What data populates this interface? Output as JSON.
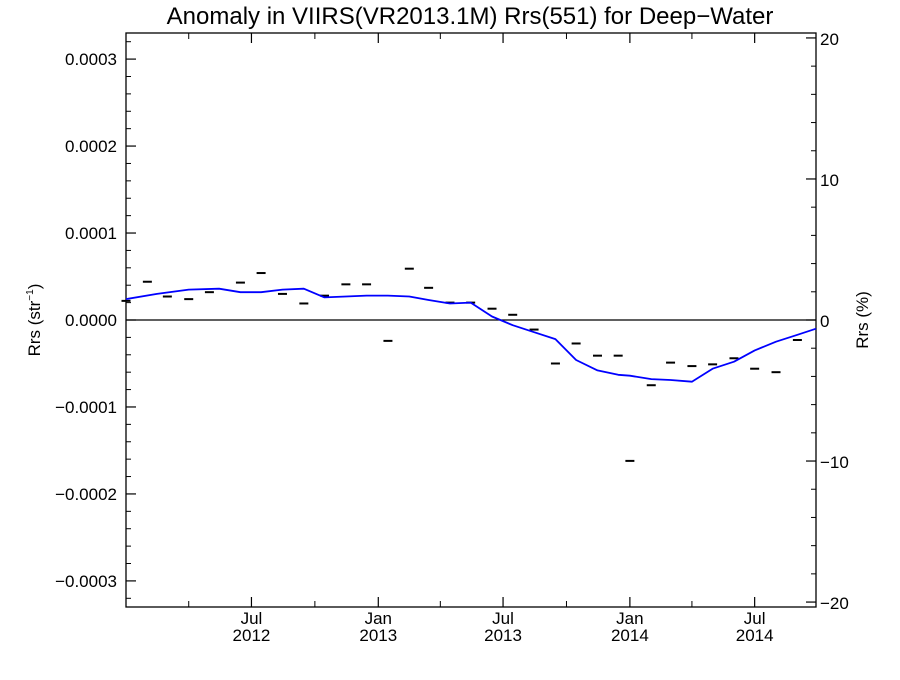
{
  "chart_data": {
    "type": "line",
    "title": "Anomaly in VIIRS(VR2013.1M) Rrs(551) for Deep−Water",
    "ylabel_left": {
      "base": "Rrs (str",
      "sup": "−1",
      "close": ")"
    },
    "ylabel_right": "Rrs (%)",
    "xlim": [
      "2012-01-01",
      "2014-09-28"
    ],
    "ylim_left": [
      -0.00033,
      0.00033
    ],
    "ylim_right": [
      -20.35,
      20.35
    ],
    "zero_line": true,
    "grid": false,
    "legend": "none",
    "left_ticks": [
      {
        "value": 0.0003,
        "label": "0.0003"
      },
      {
        "value": 0.0002,
        "label": "0.0002"
      },
      {
        "value": 0.0001,
        "label": "0.0001"
      },
      {
        "value": 0.0,
        "label": "0.0000"
      },
      {
        "value": -0.0001,
        "label": "−0.0001"
      },
      {
        "value": -0.0002,
        "label": "−0.0002"
      },
      {
        "value": -0.0003,
        "label": "−0.0003"
      }
    ],
    "right_ticks": [
      {
        "value": 20,
        "label": "20"
      },
      {
        "value": 10,
        "label": "10"
      },
      {
        "value": 0,
        "label": "0"
      },
      {
        "value": -10,
        "label": "−10"
      },
      {
        "value": -20,
        "label": "−20"
      }
    ],
    "x_ticks": [
      {
        "date": "2012-07-01",
        "label1": "Jul",
        "label2": "2012"
      },
      {
        "date": "2013-01-01",
        "label1": "Jan",
        "label2": "2013"
      },
      {
        "date": "2013-07-01",
        "label1": "Jul",
        "label2": "2013"
      },
      {
        "date": "2014-01-01",
        "label1": "Jan",
        "label2": "2014"
      },
      {
        "date": "2014-07-01",
        "label1": "Jul",
        "label2": "2014"
      }
    ],
    "x_minor_ticks": [
      "2012-01-01",
      "2012-04-01",
      "2012-10-01",
      "2013-04-01",
      "2013-10-01",
      "2014-04-01"
    ],
    "series": [
      {
        "style": "dash-markers",
        "color": "#000000",
        "points": [
          {
            "x": "2012-01-01",
            "y": 2.2e-05
          },
          {
            "x": "2012-02-01",
            "y": 4.4e-05
          },
          {
            "x": "2012-03-01",
            "y": 2.7e-05
          },
          {
            "x": "2012-04-01",
            "y": 2.4e-05
          },
          {
            "x": "2012-05-01",
            "y": 3.2e-05
          },
          {
            "x": "2012-06-15",
            "y": 4.3e-05
          },
          {
            "x": "2012-07-15",
            "y": 5.4e-05
          },
          {
            "x": "2012-08-15",
            "y": 3e-05
          },
          {
            "x": "2012-09-15",
            "y": 1.9e-05
          },
          {
            "x": "2012-10-15",
            "y": 2.8e-05
          },
          {
            "x": "2012-11-15",
            "y": 4.1e-05
          },
          {
            "x": "2012-12-15",
            "y": 4.1e-05
          },
          {
            "x": "2013-01-15",
            "y": -2.4e-05
          },
          {
            "x": "2013-02-15",
            "y": 5.9e-05
          },
          {
            "x": "2013-03-15",
            "y": 3.7e-05
          },
          {
            "x": "2013-04-15",
            "y": 2e-05
          },
          {
            "x": "2013-05-15",
            "y": 2e-05
          },
          {
            "x": "2013-06-15",
            "y": 1.3e-05
          },
          {
            "x": "2013-07-15",
            "y": 6e-06
          },
          {
            "x": "2013-08-15",
            "y": -1.1e-05
          },
          {
            "x": "2013-09-15",
            "y": -5e-05
          },
          {
            "x": "2013-10-15",
            "y": -2.7e-05
          },
          {
            "x": "2013-11-15",
            "y": -4.1e-05
          },
          {
            "x": "2013-12-15",
            "y": -4.1e-05
          },
          {
            "x": "2014-01-01",
            "y": -0.000162
          },
          {
            "x": "2014-02-01",
            "y": -7.5e-05
          },
          {
            "x": "2014-03-01",
            "y": -4.9e-05
          },
          {
            "x": "2014-04-01",
            "y": -5.3e-05
          },
          {
            "x": "2014-05-01",
            "y": -5.1e-05
          },
          {
            "x": "2014-06-01",
            "y": -4.4e-05
          },
          {
            "x": "2014-07-01",
            "y": -5.6e-05
          },
          {
            "x": "2014-08-01",
            "y": -6e-05
          },
          {
            "x": "2014-09-01",
            "y": -2.3e-05
          }
        ]
      },
      {
        "style": "line",
        "color": "#0000ff",
        "points": [
          {
            "x": "2012-01-01",
            "y": 2.4e-05
          },
          {
            "x": "2012-02-15",
            "y": 3e-05
          },
          {
            "x": "2012-04-01",
            "y": 3.5e-05
          },
          {
            "x": "2012-05-15",
            "y": 3.6e-05
          },
          {
            "x": "2012-06-15",
            "y": 3.2e-05
          },
          {
            "x": "2012-07-15",
            "y": 3.2e-05
          },
          {
            "x": "2012-08-15",
            "y": 3.5e-05
          },
          {
            "x": "2012-09-15",
            "y": 3.6e-05
          },
          {
            "x": "2012-10-15",
            "y": 2.6e-05
          },
          {
            "x": "2012-11-15",
            "y": 2.7e-05
          },
          {
            "x": "2012-12-15",
            "y": 2.8e-05
          },
          {
            "x": "2013-01-15",
            "y": 2.8e-05
          },
          {
            "x": "2013-02-15",
            "y": 2.7e-05
          },
          {
            "x": "2013-03-15",
            "y": 2.3e-05
          },
          {
            "x": "2013-04-15",
            "y": 1.9e-05
          },
          {
            "x": "2013-05-15",
            "y": 2e-05
          },
          {
            "x": "2013-06-15",
            "y": 4e-06
          },
          {
            "x": "2013-07-15",
            "y": -6e-06
          },
          {
            "x": "2013-08-15",
            "y": -1.4e-05
          },
          {
            "x": "2013-09-15",
            "y": -2.2e-05
          },
          {
            "x": "2013-10-15",
            "y": -4.6e-05
          },
          {
            "x": "2013-11-15",
            "y": -5.8e-05
          },
          {
            "x": "2013-12-15",
            "y": -6.3e-05
          },
          {
            "x": "2014-01-01",
            "y": -6.4e-05
          },
          {
            "x": "2014-02-01",
            "y": -6.8e-05
          },
          {
            "x": "2014-03-01",
            "y": -6.9e-05
          },
          {
            "x": "2014-04-01",
            "y": -7.1e-05
          },
          {
            "x": "2014-05-01",
            "y": -5.6e-05
          },
          {
            "x": "2014-06-01",
            "y": -4.8e-05
          },
          {
            "x": "2014-07-01",
            "y": -3.5e-05
          },
          {
            "x": "2014-08-01",
            "y": -2.5e-05
          },
          {
            "x": "2014-09-01",
            "y": -1.7e-05
          },
          {
            "x": "2014-09-28",
            "y": -1e-05
          }
        ]
      }
    ]
  }
}
